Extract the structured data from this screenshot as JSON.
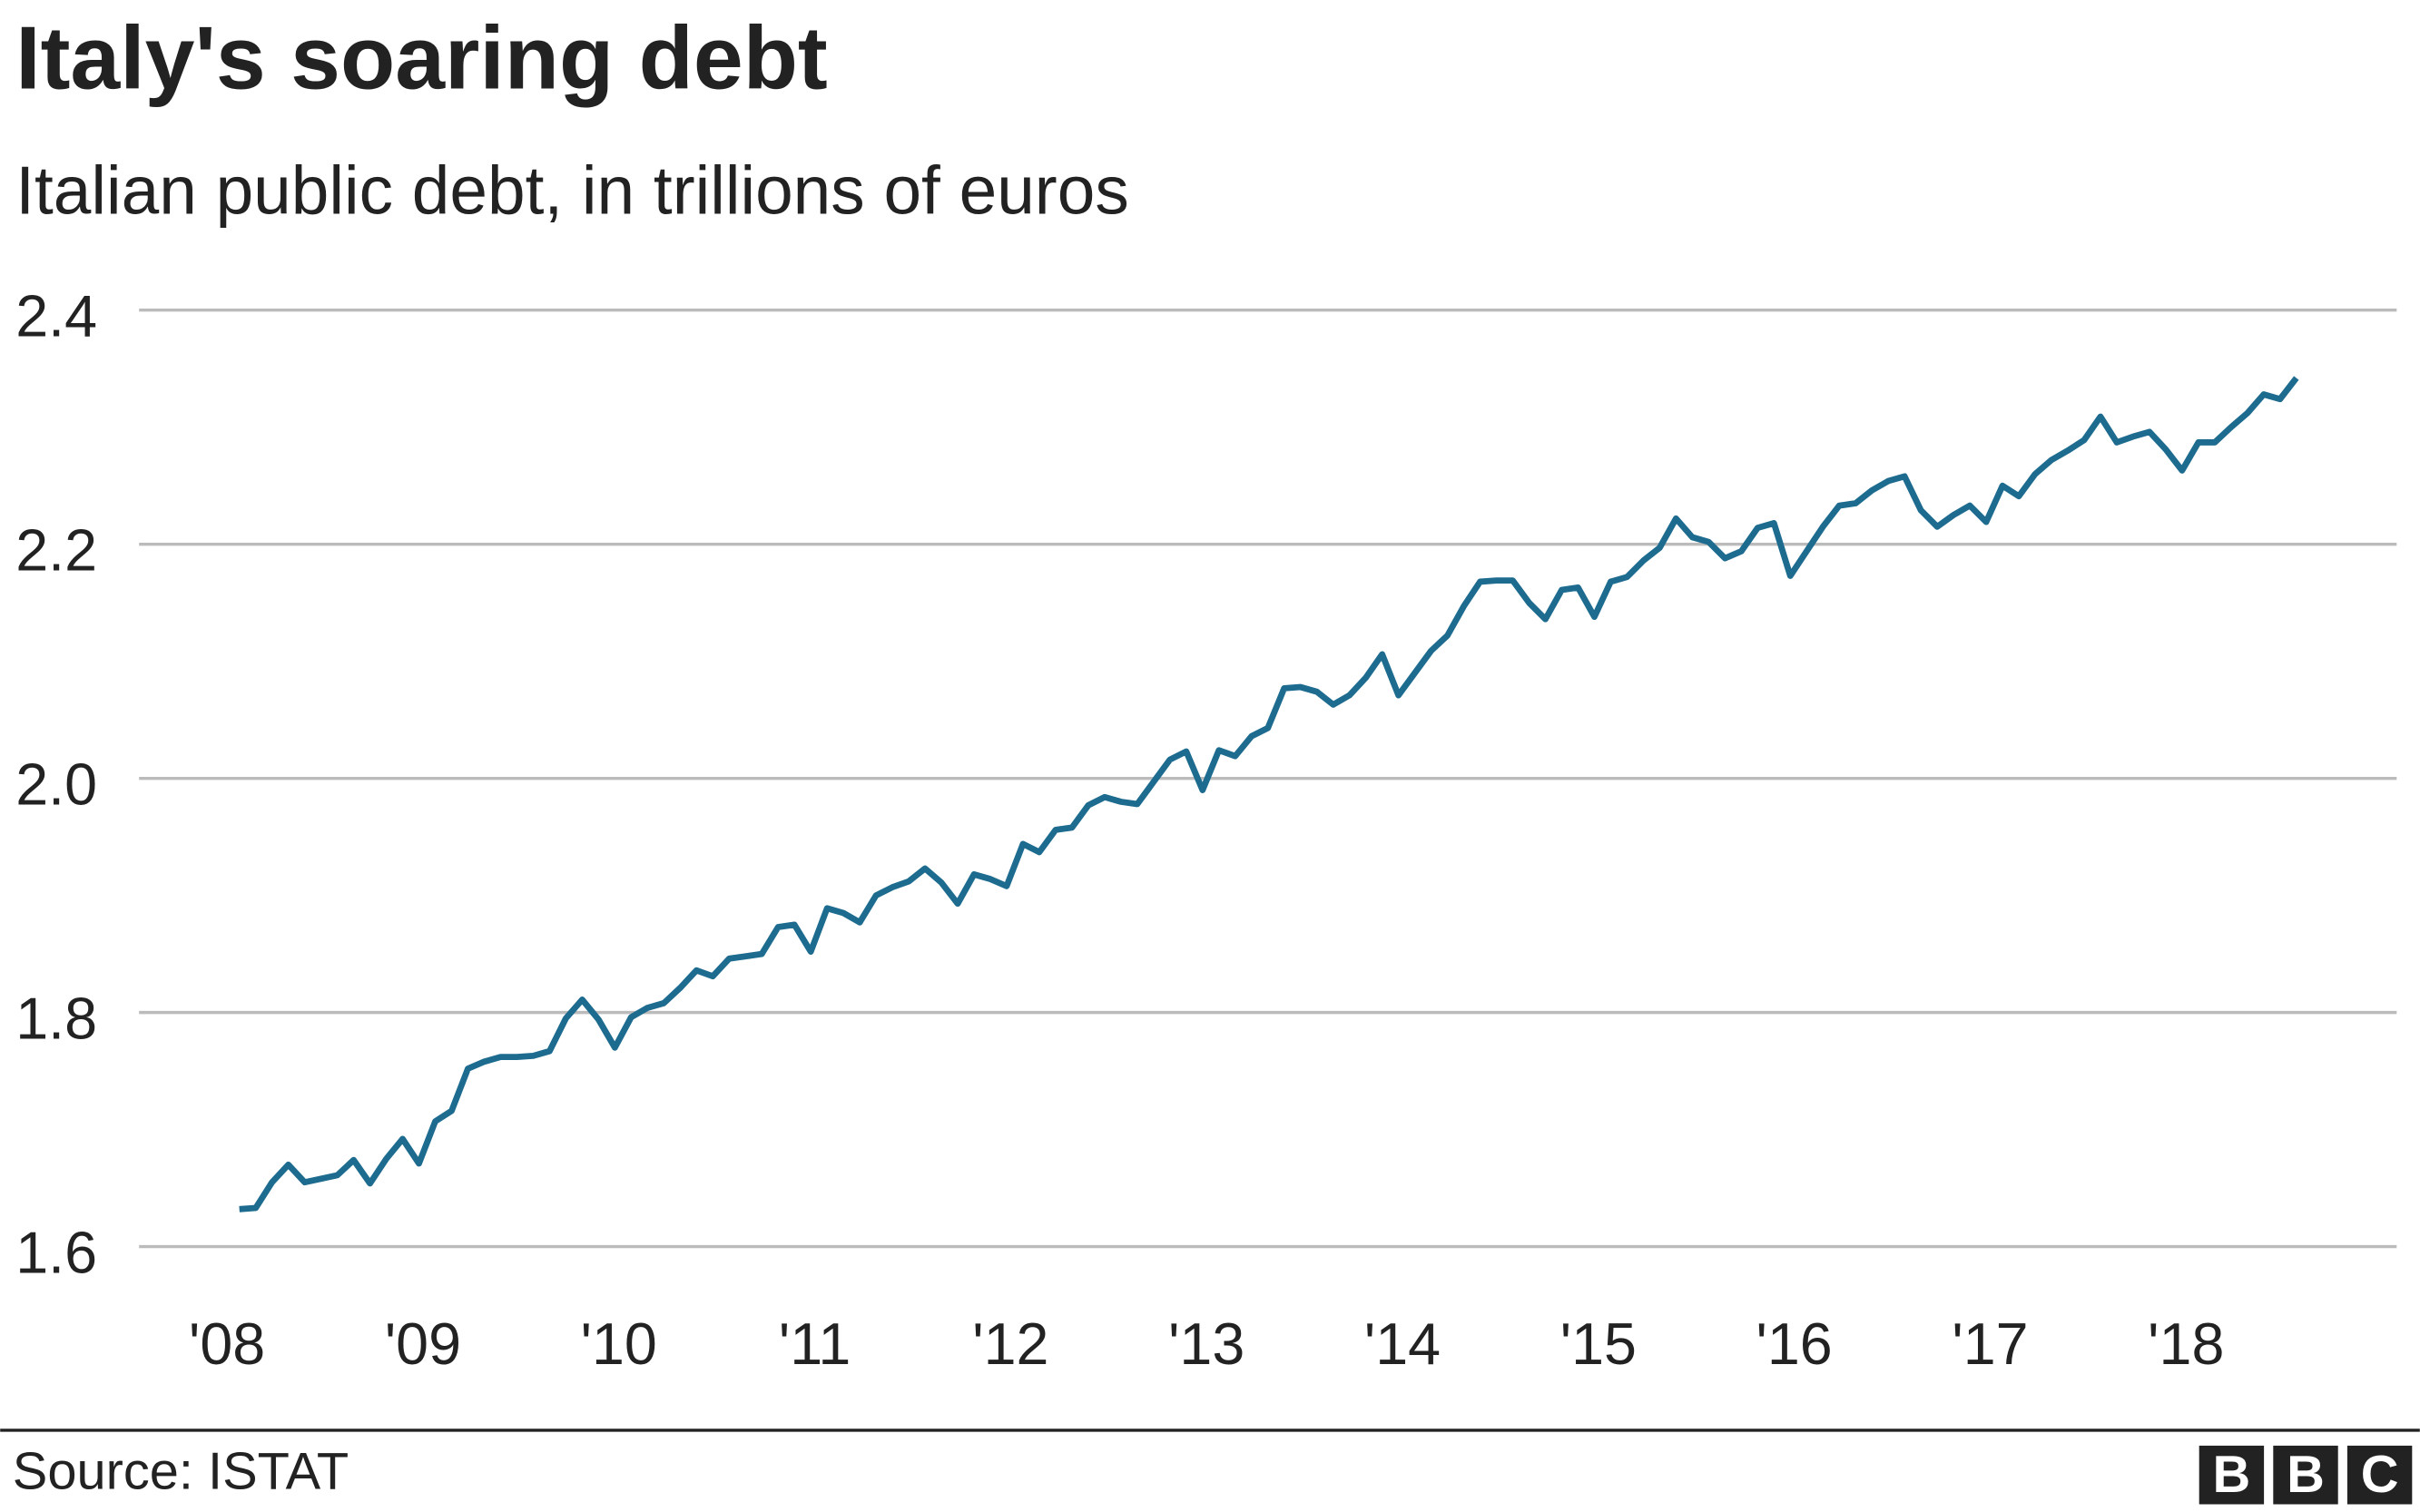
{
  "chart_data": {
    "type": "line",
    "title": "Italy's soaring debt",
    "subtitle": "Italian public debt, in trillions of euros",
    "source": "Source: ISTAT",
    "logo": [
      "B",
      "B",
      "C"
    ],
    "color": "#1d6b8f",
    "grid": true,
    "ylim": [
      1.6,
      2.4
    ],
    "yticks": [
      1.6,
      1.8,
      {
        "value": 2,
        "label": "2.0"
      },
      2.2,
      2.4
    ],
    "categories": [
      "'08",
      null,
      null,
      null,
      null,
      null,
      null,
      null,
      null,
      null,
      null,
      null,
      "'09",
      null,
      null,
      null,
      null,
      null,
      null,
      null,
      null,
      null,
      null,
      null,
      "'10",
      null,
      null,
      null,
      null,
      null,
      null,
      null,
      null,
      null,
      null,
      null,
      "'11",
      null,
      null,
      null,
      null,
      null,
      null,
      null,
      null,
      null,
      null,
      null,
      "'12",
      null,
      null,
      null,
      null,
      null,
      null,
      null,
      null,
      null,
      null,
      null,
      "'13",
      null,
      null,
      null,
      null,
      null,
      null,
      null,
      null,
      null,
      null,
      null,
      "'14",
      null,
      null,
      null,
      null,
      null,
      null,
      null,
      null,
      null,
      null,
      null,
      "'15",
      null,
      null,
      null,
      null,
      null,
      null,
      null,
      null,
      null,
      null,
      null,
      "'16",
      null,
      null,
      null,
      null,
      null,
      null,
      null,
      null,
      null,
      null,
      null,
      "'17",
      null,
      null,
      null,
      null,
      null,
      null,
      null,
      null,
      null,
      null,
      null,
      "'18",
      null,
      null,
      null,
      null,
      null,
      null
    ],
    "values": [
      1.632,
      1.633,
      1.655,
      1.67,
      1.655,
      1.658,
      1.661,
      1.674,
      1.654,
      1.675,
      1.692,
      1.671,
      1.707,
      1.716,
      1.752,
      1.758,
      1.762,
      1.762,
      1.763,
      1.767,
      1.795,
      1.811,
      1.794,
      1.77,
      1.796,
      1.804,
      1.808,
      1.821,
      1.836,
      1.831,
      1.846,
      1.848,
      1.85,
      1.873,
      1.875,
      1.852,
      1.889,
      1.885,
      1.877,
      1.9,
      1.907,
      1.912,
      1.923,
      1.911,
      1.893,
      1.918,
      1.914,
      1.908,
      1.944,
      1.937,
      1.956,
      1.958,
      1.977,
      1.984,
      1.98,
      1.978,
      1.997,
      2.016,
      2.023,
      1.99,
      2.024,
      2.019,
      2.036,
      2.043,
      2.077,
      2.078,
      2.074,
      2.063,
      2.071,
      2.086,
      2.106,
      2.071,
      2.09,
      2.109,
      2.122,
      2.147,
      2.168,
      2.169,
      2.169,
      2.15,
      2.136,
      2.161,
      2.163,
      2.138,
      2.168,
      2.172,
      2.186,
      2.197,
      2.222,
      2.206,
      2.202,
      2.188,
      2.194,
      2.214,
      2.218,
      2.173,
      2.194,
      2.215,
      2.233,
      2.235,
      2.246,
      2.254,
      2.258,
      2.229,
      2.215,
      2.225,
      2.233,
      2.219,
      2.25,
      2.241,
      2.26,
      2.272,
      2.28,
      2.289,
      2.309,
      2.287,
      2.292,
      2.296,
      2.281,
      2.263,
      2.287,
      2.287,
      2.3,
      2.312,
      2.328,
      2.324,
      2.342
    ]
  }
}
